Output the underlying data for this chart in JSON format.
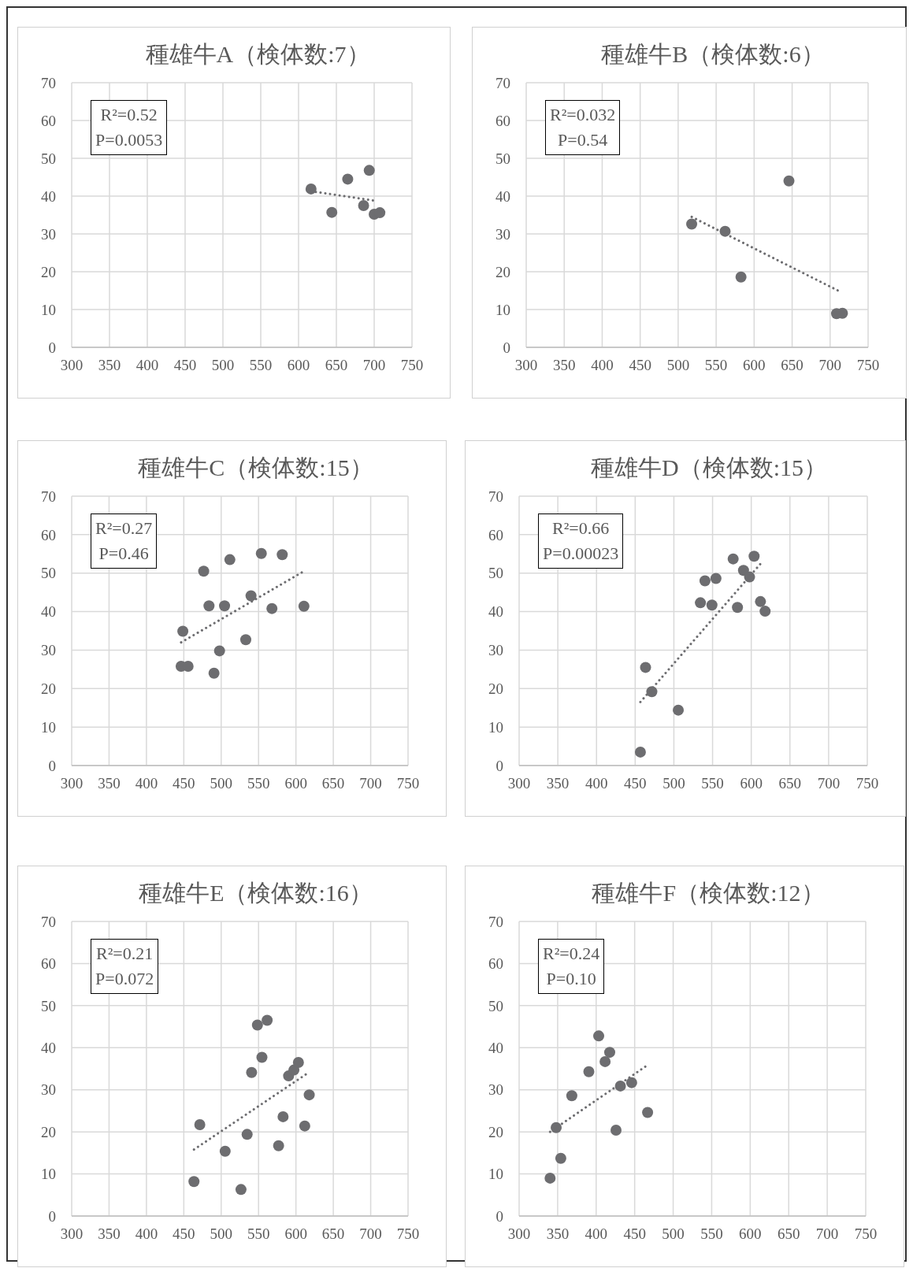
{
  "chart_data": [
    {
      "type": "scatter",
      "title": "種雄牛A（検体数:7）",
      "xlim": [
        300,
        750
      ],
      "xticks": [
        300,
        350,
        400,
        450,
        500,
        550,
        600,
        650,
        700,
        750
      ],
      "ylim": [
        0,
        70
      ],
      "yticks": [
        0,
        10,
        20,
        30,
        40,
        50,
        60,
        70
      ],
      "grid": true,
      "annotations": [
        "R²=0.52",
        "P=0.0053"
      ],
      "series": [
        {
          "marker": "circle",
          "color": "#6d6d70",
          "x": [
            616.5,
            644,
            665,
            693.5,
            686,
            700,
            707.5
          ],
          "values": [
            41.9,
            35.7,
            44.5,
            46.8,
            37.5,
            35.2,
            35.6
          ]
        },
        {
          "type": "line",
          "marker": "none",
          "line_style": "dotted",
          "color": "#6d6d70",
          "x": [
            616.5,
            704
          ],
          "values": [
            41.3,
            38.7
          ]
        }
      ]
    },
    {
      "type": "scatter",
      "title": "種雄牛B（検体数:6）",
      "xlim": [
        300,
        750
      ],
      "xticks": [
        300,
        350,
        400,
        450,
        500,
        550,
        600,
        650,
        700,
        750
      ],
      "ylim": [
        0,
        70
      ],
      "yticks": [
        0,
        10,
        20,
        30,
        40,
        50,
        60,
        70
      ],
      "grid": true,
      "annotations": [
        "R²=0.032",
        "P=0.54"
      ],
      "series": [
        {
          "marker": "circle",
          "color": "#6d6d70",
          "x": [
            517.8,
            561.8,
            582.7,
            645.8,
            708.5,
            716.2
          ],
          "values": [
            32.6,
            30.7,
            18.6,
            44.0,
            8.9,
            9.0
          ]
        },
        {
          "type": "line",
          "marker": "none",
          "line_style": "dotted",
          "color": "#6d6d70",
          "x": [
            517.8,
            712.5
          ],
          "values": [
            34.5,
            14.8
          ]
        }
      ]
    },
    {
      "type": "scatter",
      "title": "種雄牛C（検体数:15）",
      "xlim": [
        300,
        750
      ],
      "xticks": [
        300,
        350,
        400,
        450,
        500,
        550,
        600,
        650,
        700,
        750
      ],
      "ylim": [
        0,
        70
      ],
      "yticks": [
        0,
        10,
        20,
        30,
        40,
        50,
        60,
        70
      ],
      "grid": true,
      "annotations": [
        "R²=0.27",
        "P=0.46"
      ],
      "series": [
        {
          "marker": "circle",
          "color": "#6d6d70",
          "x": [
            448.7,
            446.4,
            455.7,
            476.6,
            483.7,
            490.4,
            497.8,
            504.5,
            511.6,
            532.9,
            539.9,
            553.7,
            567.9,
            581.7,
            610.7
          ],
          "values": [
            34.9,
            25.8,
            25.8,
            50.5,
            41.5,
            24.0,
            29.8,
            41.5,
            53.5,
            32.7,
            44.1,
            55.1,
            40.8,
            54.8,
            41.4
          ]
        },
        {
          "type": "line",
          "marker": "none",
          "line_style": "dotted",
          "color": "#6d6d70",
          "x": [
            446.4,
            608.1
          ],
          "values": [
            32.0,
            50.2
          ]
        }
      ]
    },
    {
      "type": "scatter",
      "title": "種雄牛D（検体数:15）",
      "xlim": [
        300,
        750
      ],
      "xticks": [
        300,
        350,
        400,
        450,
        500,
        550,
        600,
        650,
        700,
        750
      ],
      "ylim": [
        0,
        70
      ],
      "yticks": [
        0,
        10,
        20,
        30,
        40,
        50,
        60,
        70
      ],
      "grid": true,
      "annotations": [
        "R²=0.66",
        "P=0.00023"
      ],
      "series": [
        {
          "marker": "circle",
          "color": "#6d6d70",
          "x": [
            456.7,
            463.4,
            471.5,
            505.7,
            534.3,
            540.2,
            549.2,
            554.4,
            576.6,
            582.2,
            590.0,
            597.8,
            603.7,
            611.9,
            617.9
          ],
          "values": [
            3.5,
            25.5,
            19.2,
            14.4,
            42.3,
            48.0,
            41.7,
            48.6,
            53.7,
            41.1,
            50.7,
            49.0,
            54.4,
            42.6,
            40.1
          ]
        },
        {
          "type": "line",
          "marker": "none",
          "line_style": "dotted",
          "color": "#6d6d70",
          "x": [
            456.7,
            615.3
          ],
          "values": [
            16.5,
            53.2
          ]
        }
      ]
    },
    {
      "type": "scatter",
      "title": "種雄牛E（検体数:16）",
      "xlim": [
        300,
        750
      ],
      "xticks": [
        300,
        350,
        400,
        450,
        500,
        550,
        600,
        650,
        700,
        750
      ],
      "ylim": [
        0,
        70
      ],
      "yticks": [
        0,
        10,
        20,
        30,
        40,
        50,
        60,
        70
      ],
      "grid": true,
      "annotations": [
        "R²=0.21",
        "P=0.072"
      ],
      "series": [
        {
          "marker": "circle",
          "color": "#6d6d70",
          "x": [
            463.6,
            471.4,
            505.3,
            526.5,
            534.7,
            540.7,
            548.5,
            561.5,
            554.5,
            576.8,
            582.8,
            590.2,
            597.3,
            603.3,
            611.8,
            617.8
          ],
          "values": [
            8.2,
            21.7,
            15.4,
            6.3,
            19.4,
            34.1,
            45.4,
            46.5,
            37.7,
            16.7,
            23.6,
            33.3,
            34.7,
            36.5,
            21.4,
            28.8
          ]
        },
        {
          "type": "line",
          "marker": "none",
          "line_style": "dotted",
          "color": "#6d6d70",
          "x": [
            463.6,
            613.7
          ],
          "values": [
            15.8,
            33.7
          ]
        }
      ]
    },
    {
      "type": "scatter",
      "title": "種雄牛F（検体数:12）",
      "xlim": [
        300,
        750
      ],
      "xticks": [
        300,
        350,
        400,
        450,
        500,
        550,
        600,
        650,
        700,
        750
      ],
      "ylim": [
        0,
        70
      ],
      "yticks": [
        0,
        10,
        20,
        30,
        40,
        50,
        60,
        70
      ],
      "grid": true,
      "annotations": [
        "R²=0.24",
        "P=0.10"
      ],
      "series": [
        {
          "marker": "circle",
          "color": "#6d6d70",
          "x": [
            340.2,
            348.1,
            354.1,
            368.4,
            390.5,
            403.3,
            411.6,
            417.6,
            425.8,
            431.5,
            446.1,
            466.8
          ],
          "values": [
            9.0,
            21.0,
            13.7,
            28.6,
            34.3,
            42.8,
            36.7,
            38.9,
            20.4,
            30.9,
            31.7,
            24.6
          ]
        },
        {
          "type": "line",
          "marker": "none",
          "line_style": "dotted",
          "color": "#6d6d70",
          "x": [
            340.2,
            463.8
          ],
          "values": [
            20.0,
            35.5
          ]
        }
      ]
    }
  ]
}
